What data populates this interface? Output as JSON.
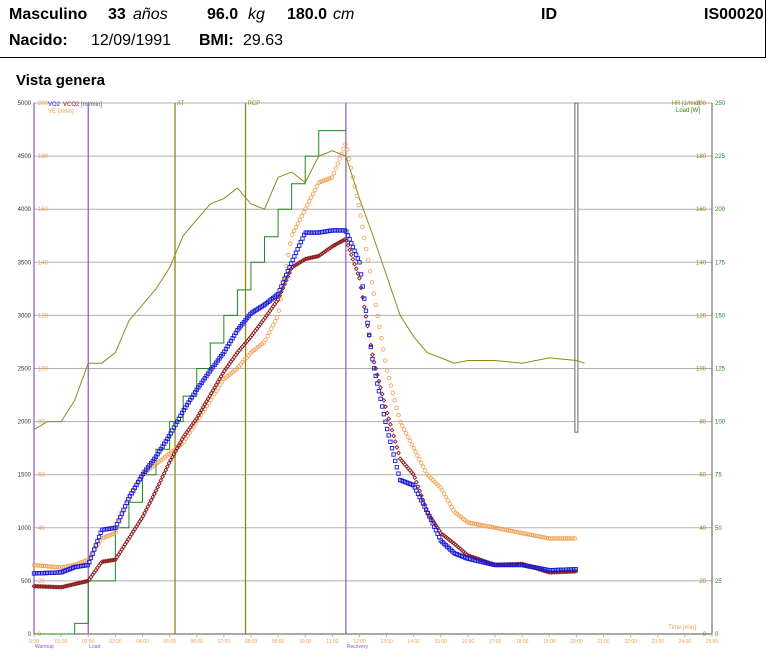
{
  "header": {
    "sex": "Masculino",
    "age": "33",
    "age_unit": "años",
    "weight": "96.0",
    "weight_unit": "kg",
    "height": "180.0",
    "height_unit": "cm",
    "id_label": "ID",
    "id_value": "IS00020",
    "born_label": "Nacido:",
    "born_value": "12/09/1991",
    "bmi_label": "BMI:",
    "bmi_value": "29.63"
  },
  "section_title": "Vista genera",
  "chart_data": {
    "type": "line",
    "left_axis": {
      "label_series": [
        "VO2",
        "VCO2"
      ],
      "unit": "[ml/min]",
      "range": [
        0,
        5000
      ],
      "ticks": [
        "0",
        "500",
        "1000",
        "1500",
        "2000",
        "2500",
        "3000",
        "3500",
        "4000",
        "4500",
        "5000"
      ]
    },
    "left_axis_2": {
      "label": "VE [l/min]",
      "range": [
        0,
        200
      ],
      "ticks": [
        "0",
        "20",
        "40",
        "60",
        "80",
        "100",
        "120",
        "140",
        "160",
        "180",
        "200"
      ]
    },
    "right_axis": {
      "label": "Load [W]",
      "range": [
        0,
        250
      ],
      "ticks": [
        "0",
        "25",
        "50",
        "75",
        "100",
        "125",
        "150",
        "175",
        "200",
        "225",
        "250"
      ]
    },
    "right_axis_2": {
      "label": "HR [1/min]",
      "range": [
        0,
        200
      ],
      "ticks": [
        "0",
        "20",
        "40",
        "60",
        "80",
        "100",
        "120",
        "140",
        "160",
        "180",
        "200"
      ]
    },
    "x_axis": {
      "label": "Time [min]",
      "range": [
        0,
        25
      ],
      "ticks": [
        "0:00",
        "01:00",
        "02:00",
        "03:00",
        "04:00",
        "05:00",
        "06:00",
        "07:00",
        "08:00",
        "09:00",
        "10:00",
        "11:00",
        "12:00",
        "13:00",
        "14:00",
        "15:00",
        "16:00",
        "17:00",
        "18:00",
        "19:00",
        "20:00",
        "21:00",
        "22:00",
        "23:00",
        "24:00",
        "25:00"
      ]
    },
    "phase_markers": [
      {
        "label": "Warmup",
        "x": 0.0,
        "color": "#8a58c8"
      },
      {
        "label": "Load",
        "x": 2.0,
        "color": "#8a58c8"
      },
      {
        "label": "Recovery",
        "x": 11.5,
        "color": "#8a58c8"
      }
    ],
    "threshold_markers": [
      {
        "label": "AT",
        "x": 5.2,
        "color": "#8b8b1a"
      },
      {
        "label": "RCP",
        "x": 7.8,
        "color": "#8b8b1a"
      }
    ],
    "series": [
      {
        "name": "VO2",
        "color": "#1a1ad8",
        "x": [
          0,
          1,
          1.5,
          2,
          2.5,
          3,
          3.5,
          4,
          4.5,
          5,
          5.5,
          6,
          6.5,
          7,
          7.5,
          8,
          8.5,
          9,
          9.5,
          10,
          10.5,
          11,
          11.5,
          12,
          12.5,
          13,
          13.5,
          14,
          14.5,
          15,
          15.5,
          16,
          17,
          18,
          19,
          20
        ],
        "y": [
          570,
          580,
          630,
          650,
          980,
          1000,
          1280,
          1500,
          1670,
          1870,
          2100,
          2300,
          2480,
          2650,
          2860,
          3020,
          3100,
          3200,
          3500,
          3780,
          3780,
          3800,
          3800,
          3500,
          2550,
          1950,
          1450,
          1400,
          1150,
          880,
          760,
          710,
          650,
          650,
          600,
          610
        ]
      },
      {
        "name": "VCO2",
        "color": "#8b1a1a",
        "x": [
          0,
          1,
          1.5,
          2,
          2.5,
          3,
          3.5,
          4,
          4.5,
          5,
          5.5,
          6,
          6.5,
          7,
          7.5,
          8,
          8.5,
          9,
          9.5,
          10,
          10.5,
          11,
          11.5,
          12,
          12.5,
          13,
          13.5,
          14,
          14.5,
          15,
          15.5,
          16,
          17,
          18,
          19,
          20
        ],
        "y": [
          450,
          440,
          470,
          500,
          680,
          700,
          900,
          1100,
          1350,
          1620,
          1850,
          2030,
          2250,
          2470,
          2650,
          2800,
          2970,
          3150,
          3450,
          3530,
          3560,
          3650,
          3720,
          3350,
          2600,
          2100,
          1650,
          1500,
          1150,
          950,
          850,
          740,
          650,
          660,
          580,
          590
        ]
      },
      {
        "name": "VE",
        "color": "#f0a050",
        "x": [
          0,
          1,
          1.5,
          2,
          2.5,
          3,
          3.5,
          4,
          4.5,
          5,
          5.5,
          6,
          6.5,
          7,
          7.5,
          8,
          8.5,
          9,
          9.5,
          10,
          10.5,
          11,
          11.5,
          12,
          12.5,
          13,
          13.5,
          14,
          14.5,
          15,
          15.5,
          16,
          17,
          18,
          19,
          20
        ],
        "y": [
          26,
          25,
          26,
          28,
          36,
          38,
          52,
          60,
          64,
          68,
          72,
          80,
          88,
          96,
          100,
          106,
          110,
          120,
          150,
          160,
          170,
          172,
          185,
          160,
          130,
          100,
          80,
          70,
          60,
          55,
          46,
          42,
          40,
          38,
          36,
          36
        ]
      },
      {
        "name": "HR",
        "color": "#8b8b1a",
        "x": [
          0,
          0.5,
          1,
          1.5,
          2,
          2.5,
          3,
          3.5,
          4,
          4.5,
          5,
          5.5,
          6,
          6.5,
          7,
          7.5,
          8,
          8.5,
          9,
          9.5,
          10,
          10.5,
          11,
          11.5,
          12,
          12.5,
          13,
          13.5,
          14,
          14.5,
          15,
          15.5,
          16,
          17,
          18,
          19,
          20,
          20.3
        ],
        "y": [
          77,
          80,
          80,
          88,
          102,
          102,
          106,
          118,
          124,
          130,
          138,
          150,
          156,
          162,
          164,
          168,
          162,
          160,
          172,
          174,
          170,
          180,
          182,
          180,
          164,
          150,
          135,
          120,
          112,
          106,
          104,
          102,
          103,
          103,
          102,
          104,
          103,
          102
        ]
      },
      {
        "name": "Load",
        "color": "#1a8b1a",
        "x": [
          0,
          1.5,
          2,
          3,
          3.5,
          4,
          4.5,
          5,
          5.5,
          6,
          6.5,
          7,
          7.5,
          8,
          8.5,
          9,
          9.5,
          10,
          10.5,
          11,
          11.5
        ],
        "y": [
          0,
          5,
          25,
          50,
          62,
          75,
          87,
          100,
          112,
          125,
          137,
          150,
          162,
          175,
          187,
          200,
          212,
          225,
          237,
          237,
          237
        ]
      }
    ],
    "gray_bar": {
      "x": 20.0,
      "from": 1900,
      "to": 5000
    }
  }
}
